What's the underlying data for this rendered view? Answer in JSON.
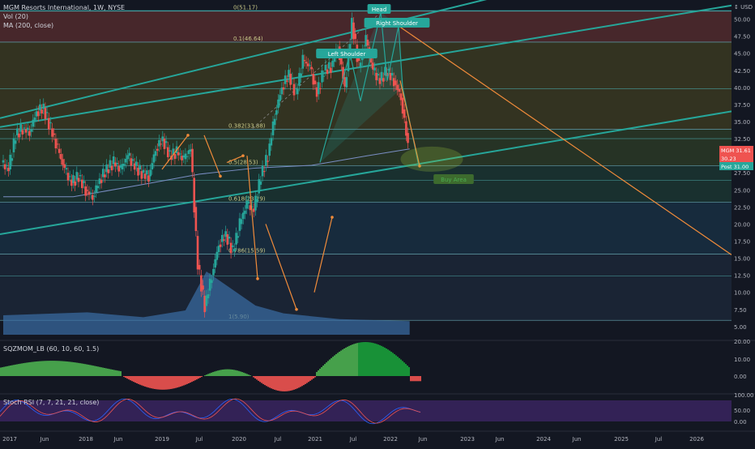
{
  "header": {
    "symbol_line": "MGM Resorts International, 1W, NYSE",
    "indicators": [
      "Vol (20)",
      "MA (200, close)"
    ],
    "currency": "USD"
  },
  "panes": {
    "momentum_label": "SQZMOM_LB (60, 10, 60, 1.5)",
    "stoch_label": "Stoch RSI (7, 7, 21, 21, close)"
  },
  "chart_data": {
    "type": "line",
    "ticker": "MGM",
    "main_y_ticks": [
      5.0,
      7.5,
      10.0,
      12.5,
      15.0,
      17.5,
      20.0,
      22.5,
      25.0,
      27.5,
      30.0,
      32.5,
      35.0,
      37.5,
      40.0,
      42.5,
      45.0,
      47.5,
      50.0
    ],
    "ylim": [
      3.2,
      52.8
    ],
    "momentum_ticks": [
      0.0,
      10.0,
      20.0
    ],
    "stoch_ticks": [
      0.0,
      50.0,
      100.0
    ],
    "x_ticks": [
      "2017",
      "Jun",
      "2018",
      "Jun",
      "2019",
      "Jul",
      "2020",
      "Jul",
      "2021",
      "Jul",
      "2022",
      "Jun",
      "2023",
      "Jun",
      "2024",
      "Jun",
      "2025",
      "Jul",
      "2026"
    ],
    "price_labels": [
      {
        "label": "MGM",
        "value": "31.61",
        "color": "#ef5350"
      },
      {
        "label": "",
        "value": "30.23",
        "color": "#ef5350"
      },
      {
        "label": "Post",
        "value": "31.00",
        "color": "#26a69a"
      }
    ],
    "fib_levels": [
      {
        "label": "0(51.17)",
        "value": 51.17,
        "zone": "#5c2a33"
      },
      {
        "label": "0.1(46.64)",
        "value": 46.64,
        "zone": "#5a2d2f"
      },
      {
        "label": "0.382(33.88)",
        "value": 33.88,
        "zone": "#3f3d22"
      },
      {
        "label": "0.5(28.53)",
        "value": 28.53,
        "zone": "#2d3d27"
      },
      {
        "label": "0.618(23.19)",
        "value": 23.19,
        "zone": "#1c3a34"
      },
      {
        "label": "0.786(15.59)",
        "value": 15.59,
        "zone": "#1a3347"
      },
      {
        "label": "1(5.90)",
        "value": 5.9,
        "zone": "#1d2a3b"
      }
    ],
    "extra_levels": [
      39.8,
      32.5,
      26.4,
      12.4
    ],
    "annotations": [
      "Head",
      "Right Shoulder",
      "Left Shoulder",
      "Buy Area"
    ],
    "series": [
      {
        "name": "Price",
        "points": [
          [
            0,
            29
          ],
          [
            0.05,
            28
          ],
          [
            0.1,
            33
          ],
          [
            0.15,
            34
          ],
          [
            0.2,
            33.5
          ],
          [
            0.25,
            36.5
          ],
          [
            0.3,
            37
          ],
          [
            0.35,
            34
          ],
          [
            0.4,
            31
          ],
          [
            0.45,
            28
          ],
          [
            0.5,
            26
          ],
          [
            0.55,
            27
          ],
          [
            0.6,
            25
          ],
          [
            0.65,
            24
          ],
          [
            0.7,
            26.5
          ],
          [
            0.75,
            28
          ],
          [
            0.8,
            29
          ],
          [
            0.85,
            28
          ],
          [
            0.9,
            30
          ],
          [
            0.95,
            28.5
          ],
          [
            1,
            27.5
          ],
          [
            1.05,
            27
          ],
          [
            1.1,
            31
          ],
          [
            1.15,
            32.5
          ],
          [
            1.2,
            30
          ],
          [
            1.25,
            30.5
          ],
          [
            1.3,
            29.5
          ],
          [
            1.35,
            31
          ],
          [
            1.4,
            14
          ],
          [
            1.45,
            8
          ],
          [
            1.5,
            12.5
          ],
          [
            1.55,
            17
          ],
          [
            1.6,
            18.5
          ],
          [
            1.65,
            16
          ],
          [
            1.7,
            20
          ],
          [
            1.75,
            23
          ],
          [
            1.8,
            22
          ],
          [
            1.85,
            27
          ],
          [
            1.9,
            30
          ],
          [
            1.95,
            36
          ],
          [
            2.0,
            40
          ],
          [
            2.05,
            42
          ],
          [
            2.1,
            39
          ],
          [
            2.15,
            44
          ],
          [
            2.2,
            43
          ],
          [
            2.25,
            39
          ],
          [
            2.3,
            42.5
          ],
          [
            2.35,
            43
          ],
          [
            2.4,
            46
          ],
          [
            2.45,
            40
          ],
          [
            2.5,
            49.5
          ],
          [
            2.55,
            43
          ],
          [
            2.6,
            47
          ],
          [
            2.65,
            42.5
          ],
          [
            2.7,
            41
          ],
          [
            2.75,
            42.5
          ],
          [
            2.8,
            41
          ],
          [
            2.85,
            38.5
          ],
          [
            2.9,
            31.6
          ]
        ]
      },
      {
        "name": "MA 200",
        "points": [
          [
            0,
            24
          ],
          [
            0.5,
            24
          ],
          [
            1.0,
            25.8
          ],
          [
            1.4,
            27.3
          ],
          [
            1.8,
            28.2
          ],
          [
            2.2,
            28.6
          ],
          [
            2.6,
            30
          ],
          [
            2.9,
            31
          ]
        ]
      },
      {
        "name": "Vol",
        "points": [
          [
            0,
            0.2
          ],
          [
            0.6,
            0.23
          ],
          [
            1.0,
            0.18
          ],
          [
            1.3,
            0.25
          ],
          [
            1.45,
            0.65
          ],
          [
            1.6,
            0.5
          ],
          [
            1.8,
            0.3
          ],
          [
            2.0,
            0.22
          ],
          [
            2.4,
            0.16
          ],
          [
            2.9,
            0.14
          ]
        ]
      }
    ]
  }
}
